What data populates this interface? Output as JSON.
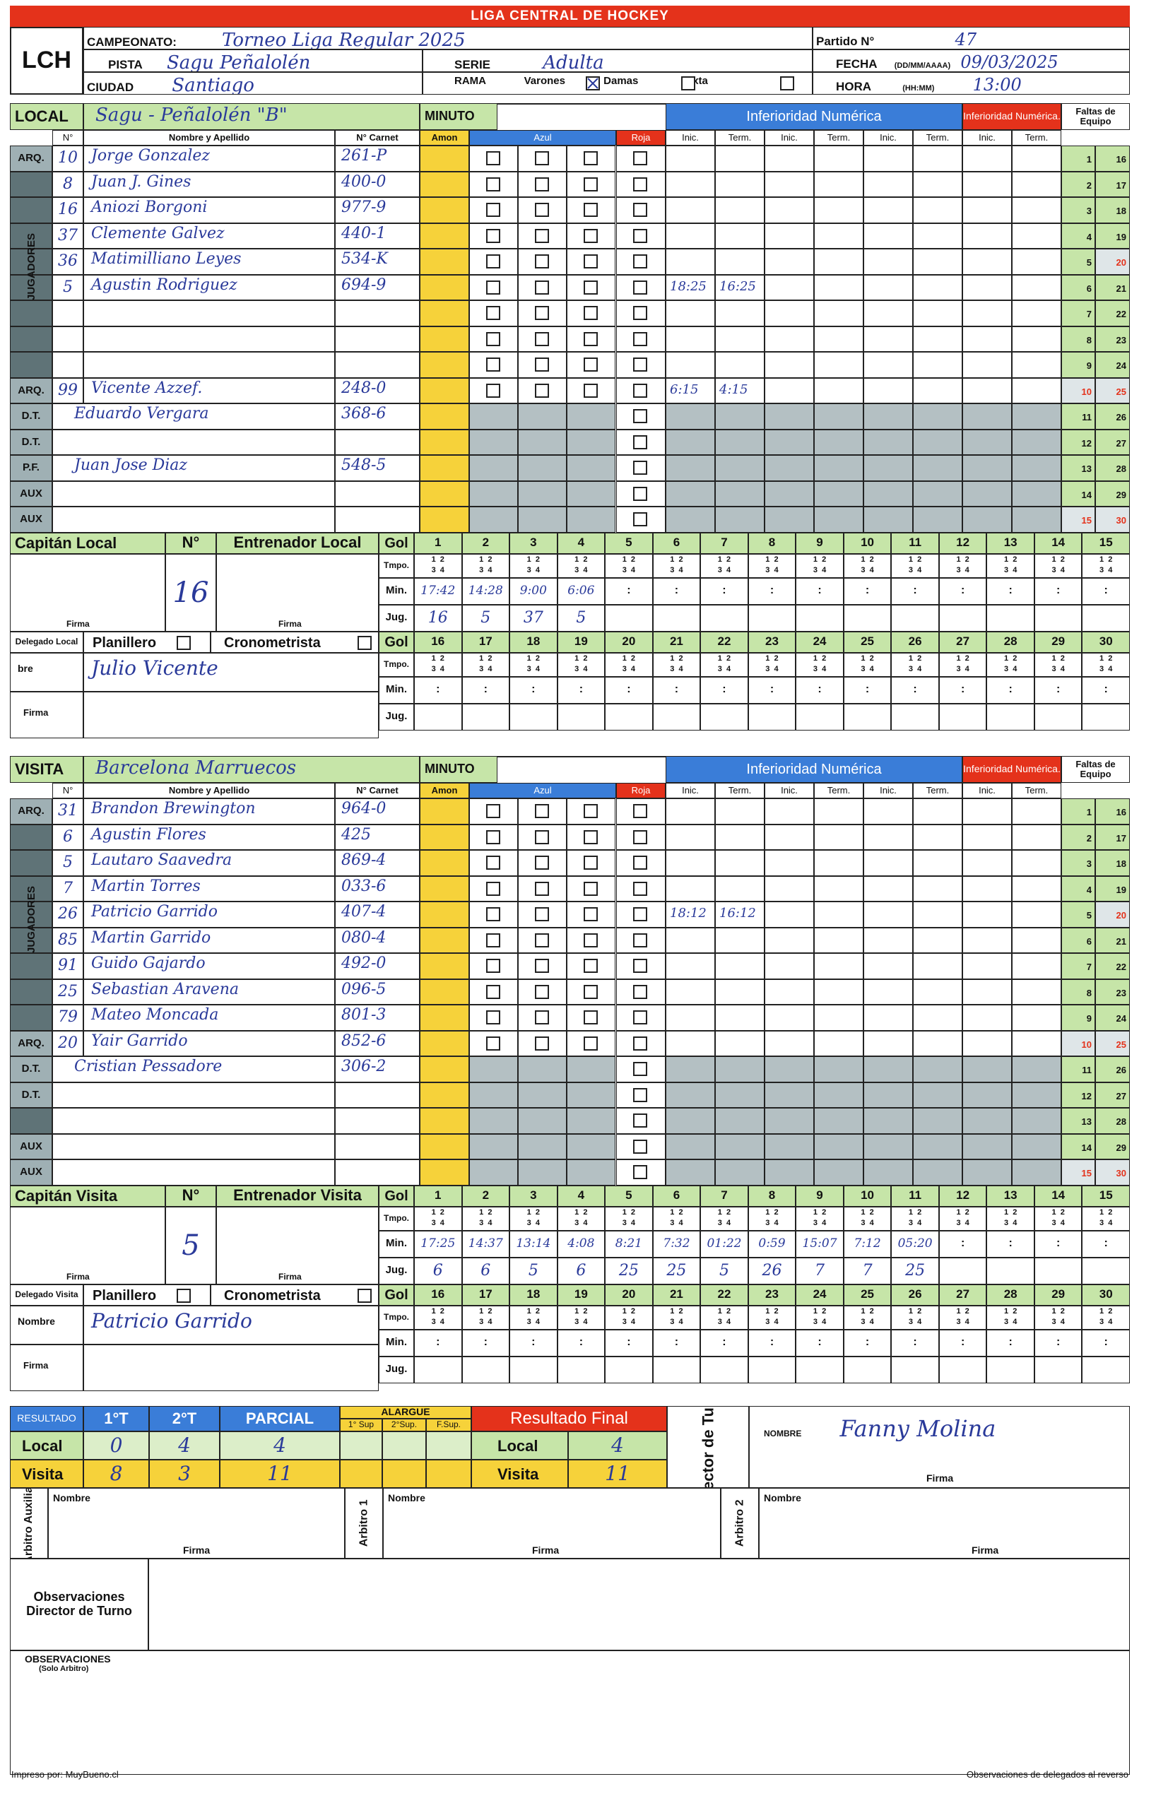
{
  "banner": "LIGA CENTRAL DE HOCKEY",
  "logo": "LCH",
  "header": {
    "campeonato_label": "CAMPEONATO:",
    "campeonato": "Torneo Liga Regular 2025",
    "partido_label": "Partido N°",
    "partido": "47",
    "pista_label": "PISTA",
    "pista": "Sagu Peñalolén",
    "serie_label": "SERIE",
    "serie": "Adulta",
    "fecha_label": "FECHA",
    "fecha_fmt": "(DD/MM/AAAA)",
    "fecha": "09/03/2025",
    "ciudad_label": "CIUDAD",
    "ciudad": "Santiago",
    "rama_label": "RAMA",
    "varones": "Varones",
    "damas": "Damas",
    "mixta": "Mixta",
    "hora_label": "HORA",
    "hora_fmt": "(HH:MM)",
    "hora": "13:00"
  },
  "labels": {
    "local": "LOCAL",
    "visita": "VISITA",
    "minuto": "MINUTO",
    "t1": "1°T",
    "t1b": "1°T",
    "t2": "2°T",
    "t2b": "2°T",
    "inferioridad": "Inferioridad Numérica",
    "inferioridad_red": "Inferioridad Numérica.",
    "faltas": "Faltas de Equipo",
    "num": "N°",
    "nombre_apellido": "Nombre y Apellido",
    "carnet": "N° Carnet",
    "amon": "Amon",
    "azul": "Azul",
    "roja": "Roja",
    "inic": "Inic.",
    "term": "Term.",
    "arq": "ARQ.",
    "dt": "D.T.",
    "pf": "P.F.",
    "aux": "AUX",
    "jugadores": "JUGADORES",
    "capitan_local": "Capitán Local",
    "capitan_visita": "Capitán Visita",
    "entrenador_local": "Entrenador Local",
    "entrenador_visita": "Entrenador Visita",
    "gol": "Gol",
    "tmpo": "Tmpo.",
    "min": "Min.",
    "jug": "Jug.",
    "firma": "Firma",
    "delegado_local": "Delegado Local",
    "delegado_visita": "Delegado Visita",
    "planillero": "Planillero",
    "cronometrista": "Cronometrista",
    "nombre": "Nombre",
    "nombre_short": "bre",
    "resultado": "RESULTADO",
    "parcial": "PARCIAL",
    "alargue": "ALARGUE",
    "sup1": "1° Sup",
    "sup2": "2°Sup.",
    "fsup": "F.Sup.",
    "resultado_final": "Resultado Final",
    "local_lbl": "Local",
    "visita_lbl": "Visita",
    "director": "Director de Turno",
    "nombre_caps": "NOMBRE",
    "arbitro_aux": "Arbitro Auxiliar",
    "arbitro1": "Arbitro 1",
    "arbitro2": "Arbitro 2",
    "obs_director": "Observaciones Director de Turno",
    "obs": "OBSERVACIONES",
    "obs_sub": "(Solo Arbitro)",
    "footer_left": "Impreso por: MuyBueno.cl",
    "footer_right": "Observaciones de delegados al reverso"
  },
  "local": {
    "team": "Sagu - Peñalolén \"B\"",
    "players": [
      {
        "role": "ARQ.",
        "num": "10",
        "name": "Jorge Gonzalez",
        "carnet": "261-P"
      },
      {
        "role": "",
        "num": "8",
        "name": "Juan J. Gines",
        "carnet": "400-0"
      },
      {
        "role": "",
        "num": "16",
        "name": "Aniozi Borgoni",
        "carnet": "977-9"
      },
      {
        "role": "",
        "num": "37",
        "name": "Clemente Galvez",
        "carnet": "440-1"
      },
      {
        "role": "",
        "num": "36",
        "name": "Matimilliano Leyes",
        "carnet": "534-K"
      },
      {
        "role": "",
        "num": "5",
        "name": "Agustin Rodriguez",
        "carnet": "694-9"
      },
      {
        "role": "",
        "num": "",
        "name": "",
        "carnet": ""
      },
      {
        "role": "",
        "num": "",
        "name": "",
        "carnet": ""
      },
      {
        "role": "",
        "num": "",
        "name": "",
        "carnet": ""
      },
      {
        "role": "ARQ.",
        "num": "99",
        "name": "Vicente Azzef.",
        "carnet": "248-0"
      }
    ],
    "staff": [
      {
        "role": "D.T.",
        "name": "Eduardo Vergara",
        "carnet": "368-6"
      },
      {
        "role": "D.T.",
        "name": "",
        "carnet": ""
      },
      {
        "role": "P.F.",
        "name": "Juan Jose Diaz",
        "carnet": "548-5"
      },
      {
        "role": "AUX",
        "name": "",
        "carnet": ""
      },
      {
        "role": "AUX",
        "name": "",
        "carnet": ""
      }
    ],
    "inf": [
      {
        "row": 5,
        "inic": "18:25",
        "term": "16:25"
      },
      {
        "row": 9,
        "inic": "6:15",
        "term": "4:15"
      }
    ],
    "capitan_num": "16",
    "gol_min": [
      "17:42",
      "14:28",
      "9:00",
      "6:06"
    ],
    "gol_jug": [
      "16",
      "5",
      "37",
      "5"
    ],
    "delegado": "Julio Vicente"
  },
  "visita": {
    "team": "Barcelona Marruecos",
    "players": [
      {
        "role": "ARQ.",
        "num": "31",
        "name": "Brandon Brewington",
        "carnet": "964-0"
      },
      {
        "role": "",
        "num": "6",
        "name": "Agustin Flores",
        "carnet": "425"
      },
      {
        "role": "",
        "num": "5",
        "name": "Lautaro Saavedra",
        "carnet": "869-4"
      },
      {
        "role": "",
        "num": "7",
        "name": "Martin Torres",
        "carnet": "033-6"
      },
      {
        "role": "",
        "num": "26",
        "name": "Patricio Garrido",
        "carnet": "407-4"
      },
      {
        "role": "",
        "num": "85",
        "name": "Martin Garrido",
        "carnet": "080-4"
      },
      {
        "role": "",
        "num": "91",
        "name": "Guido Gajardo",
        "carnet": "492-0"
      },
      {
        "role": "",
        "num": "25",
        "name": "Sebastian Aravena",
        "carnet": "096-5"
      },
      {
        "role": "",
        "num": "79",
        "name": "Mateo Moncada",
        "carnet": "801-3"
      },
      {
        "role": "ARQ.",
        "num": "20",
        "name": "Yair Garrido",
        "carnet": "852-6"
      }
    ],
    "staff": [
      {
        "role": "D.T.",
        "name": "Cristian Pessadore",
        "carnet": "306-2"
      },
      {
        "role": "D.T.",
        "name": "",
        "carnet": ""
      },
      {
        "role": "",
        "name": "",
        "carnet": ""
      },
      {
        "role": "AUX",
        "name": "",
        "carnet": ""
      },
      {
        "role": "AUX",
        "name": "",
        "carnet": ""
      }
    ],
    "inf": [
      {
        "row": 4,
        "inic": "18:12",
        "term": "16:12"
      }
    ],
    "capitan_num": "5",
    "gol_min": [
      "17:25",
      "14:37",
      "13:14",
      "4:08",
      "8:21",
      "7:32",
      "01:22",
      "0:59",
      "15:07",
      "7:12",
      "05:20"
    ],
    "gol_jug": [
      "6",
      "6",
      "5",
      "6",
      "25",
      "25",
      "5",
      "26",
      "7",
      "7",
      "25"
    ],
    "delegado": "Patricio Garrido"
  },
  "resultado": {
    "local_1t": "0",
    "local_2t": "4",
    "local_parcial": "4",
    "visita_1t": "8",
    "visita_2t": "3",
    "visita_parcial": "11",
    "final_local": "4",
    "final_visita": "11"
  },
  "director": {
    "name": "Fanny Molina"
  },
  "faltas_a": [
    "1",
    "2",
    "3",
    "4",
    "5",
    "6",
    "7",
    "8",
    "9",
    "10",
    "11",
    "12",
    "13",
    "14",
    "15"
  ],
  "faltas_b": [
    "16",
    "17",
    "18",
    "19",
    "20",
    "21",
    "22",
    "23",
    "24",
    "25",
    "26",
    "27",
    "28",
    "29",
    "30"
  ],
  "goals_a": [
    "1",
    "2",
    "3",
    "4",
    "5",
    "6",
    "7",
    "8",
    "9",
    "10",
    "11",
    "12",
    "13",
    "14",
    "15"
  ],
  "goals_b": [
    "16",
    "17",
    "18",
    "19",
    "20",
    "21",
    "22",
    "23",
    "24",
    "25",
    "26",
    "27",
    "28",
    "29",
    "30"
  ],
  "colors": {
    "red": "#e4321b",
    "blue": "#3a7dd8",
    "yellow": "#f6d23a",
    "green": "#c6e5a8",
    "gray": "#b4c0c3"
  }
}
